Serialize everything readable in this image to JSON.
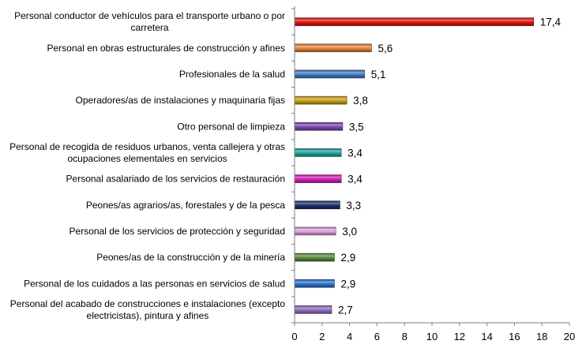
{
  "chart_data": {
    "type": "bar",
    "orientation": "horizontal",
    "title": "",
    "xlabel": "",
    "ylabel": "",
    "xlim": [
      0,
      20
    ],
    "xticks": [
      0,
      2,
      4,
      6,
      8,
      10,
      12,
      14,
      16,
      18,
      20
    ],
    "grid": false,
    "legend": "none",
    "categories": [
      [
        "Personal conductor de vehículos para el transporte urbano o por",
        "carretera"
      ],
      [
        "Personal en obras estructurales de construcción y afines"
      ],
      [
        "Profesionales de la salud"
      ],
      [
        "Operadores/as de instalaciones y maquinaria fijas"
      ],
      [
        "Otro personal de limpieza"
      ],
      [
        "Personal de recogida de residuos urbanos, venta callejera y otras",
        "ocupaciones elementales en servicios"
      ],
      [
        "Personal asalariado de los servicios de restauración"
      ],
      [
        "Peones/as agrarios/as, forestales y de la pesca"
      ],
      [
        "Personal de los servicios de protección y seguridad"
      ],
      [
        "Peones/as de la construcción y de la minería"
      ],
      [
        "Personal de los cuidados a las personas en servicios de salud"
      ],
      [
        "Personal del acabado de construcciones e instalaciones (excepto",
        "electricistas), pintura y afines"
      ]
    ],
    "values": [
      17.4,
      5.6,
      5.1,
      3.8,
      3.5,
      3.4,
      3.4,
      3.3,
      3.0,
      2.9,
      2.9,
      2.7
    ],
    "value_labels": [
      "17,4",
      "5,6",
      "5,1",
      "3,8",
      "3,5",
      "3,4",
      "3,4",
      "3,3",
      "3,0",
      "2,9",
      "2,9",
      "2,7"
    ],
    "colors": [
      "#e0150f",
      "#e8843f",
      "#3e7bc4",
      "#c9a215",
      "#7b4bb0",
      "#1fa59a",
      "#d61fbc",
      "#1c2f6b",
      "#dea0d8",
      "#5c8b3c",
      "#2f73d2",
      "#8e6dbb"
    ]
  }
}
